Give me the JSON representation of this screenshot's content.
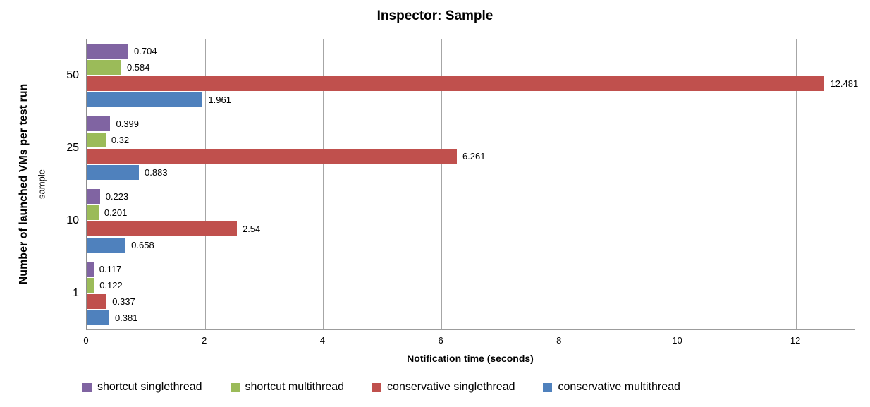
{
  "title": "Inspector: Sample",
  "axes": {
    "x_title": "Notification time (seconds)",
    "y_title": "Number of launched VMs per test run",
    "y_subtitle": "sample"
  },
  "colors": {
    "shortcut_singlethread": "#8064A2",
    "shortcut_multithread": "#9BBB59",
    "conservative_singlethread": "#C0504D",
    "conservative_multithread": "#4F81BD",
    "gridline": "#A6A6A6",
    "axis_line": "#8E8E8E",
    "background": "#FFFFFF",
    "text": "#000000"
  },
  "chart_data": {
    "type": "bar",
    "orientation": "horizontal",
    "title": "Inspector: Sample",
    "xlabel": "Notification time (seconds)",
    "ylabel": "Number of launched VMs per test run",
    "ylabel_secondary": "sample",
    "categories": [
      "50",
      "25",
      "10",
      "1"
    ],
    "x_ticks": [
      "0",
      "2",
      "4",
      "6",
      "8",
      "10",
      "12"
    ],
    "xlim": [
      0,
      13
    ],
    "grid": true,
    "legend_position": "bottom",
    "series": [
      {
        "name": "shortcut singlethread",
        "color": "#8064A2",
        "values": [
          0.704,
          0.399,
          0.223,
          0.117
        ],
        "labels": [
          "0.704",
          "0.399",
          "0.223",
          "0.117"
        ]
      },
      {
        "name": "shortcut multithread",
        "color": "#9BBB59",
        "values": [
          0.584,
          0.32,
          0.201,
          0.122
        ],
        "labels": [
          "0.584",
          "0.32",
          "0.201",
          "0.122"
        ]
      },
      {
        "name": "conservative singlethread",
        "color": "#C0504D",
        "values": [
          12.481,
          6.261,
          2.54,
          0.337
        ],
        "labels": [
          "12.481",
          "6.261",
          "2.54",
          "0.337"
        ]
      },
      {
        "name": "conservative multithread",
        "color": "#4F81BD",
        "values": [
          1.961,
          0.883,
          0.658,
          0.381
        ],
        "labels": [
          "1.961",
          "0.883",
          "0.658",
          "0.381"
        ]
      }
    ]
  }
}
